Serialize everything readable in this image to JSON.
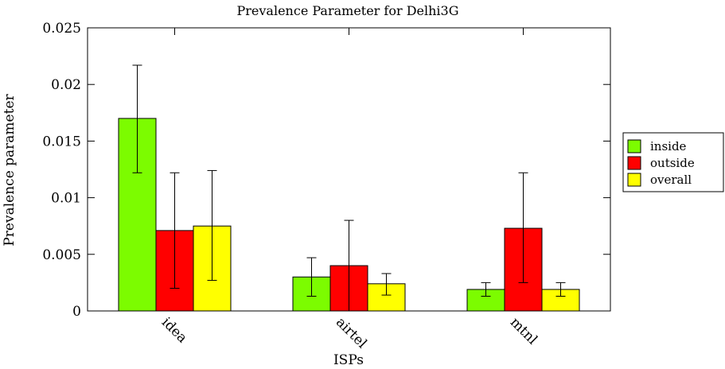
{
  "chart_data": {
    "type": "bar",
    "title": "Prevalence Parameter for Delhi3G",
    "xlabel": "ISPs",
    "ylabel": "Prevalence parameter",
    "categories": [
      "idea",
      "airtel",
      "mtnl"
    ],
    "ylim": [
      0,
      0.025
    ],
    "yticks": [
      0,
      0.005,
      0.01,
      0.015,
      0.02,
      0.025
    ],
    "ytick_labels": [
      "0",
      "0.005",
      "0.01",
      "0.015",
      "0.02",
      "0.025"
    ],
    "legend_position": "right",
    "grid": false,
    "series": [
      {
        "name": "inside",
        "color": "#7cfc00",
        "values": [
          0.017,
          0.003,
          0.0019
        ],
        "error_low": [
          0.0122,
          0.0013,
          0.0013
        ],
        "error_high": [
          0.0217,
          0.0047,
          0.0025
        ]
      },
      {
        "name": "outside",
        "color": "#ff0000",
        "values": [
          0.0071,
          0.004,
          0.0073
        ],
        "error_low": [
          0.002,
          0.0,
          0.0025
        ],
        "error_high": [
          0.0122,
          0.008,
          0.0122
        ]
      },
      {
        "name": "overall",
        "color": "#ffff00",
        "values": [
          0.0075,
          0.0024,
          0.0019
        ],
        "error_low": [
          0.0027,
          0.0014,
          0.0013
        ],
        "error_high": [
          0.0124,
          0.0033,
          0.0025
        ]
      }
    ]
  }
}
